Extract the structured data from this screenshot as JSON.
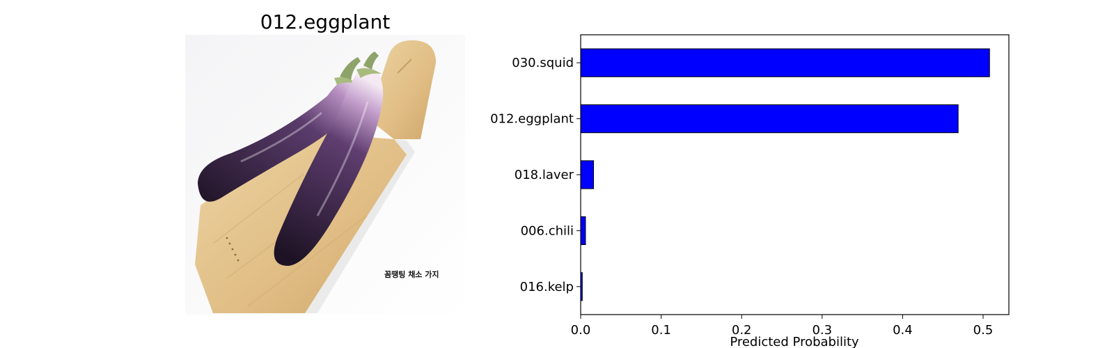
{
  "image_panel": {
    "title": "012.eggplant",
    "photo_caption": "꼼땡팅 채소 가지",
    "colors": {
      "eggplant_dark": "#2b1a35",
      "eggplant_tip": "#d9c4e0",
      "board": "#e2c38c"
    }
  },
  "chart_data": {
    "type": "bar",
    "orientation": "horizontal",
    "categories": [
      "030.squid",
      "012.eggplant",
      "018.laver",
      "006.chili",
      "016.kelp"
    ],
    "values": [
      0.508,
      0.469,
      0.016,
      0.006,
      0.002
    ],
    "title": "",
    "xlabel": "Predicted Probability",
    "ylabel": "",
    "xlim": [
      0,
      0.532
    ],
    "xticks": [
      0.0,
      0.1,
      0.2,
      0.3,
      0.4,
      0.5
    ],
    "xtick_labels": [
      "0.0",
      "0.1",
      "0.2",
      "0.3",
      "0.4",
      "0.5"
    ],
    "grid": false,
    "bar_color": "#0000ff",
    "edge_color": "#000000"
  }
}
